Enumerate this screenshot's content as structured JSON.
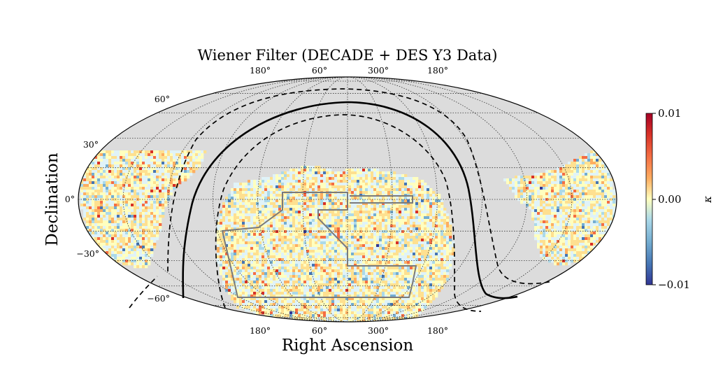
{
  "chart_data": {
    "type": "heatmap",
    "projection": "mollweide",
    "title": "Wiener Filter (DECADE + DES Y3 Data)",
    "xlabel": "Right Ascension",
    "ylabel": "Declination",
    "ra_tick_labels_top": [
      "180°",
      "60°",
      "300°",
      "180°"
    ],
    "ra_tick_labels_bottom": [
      "180°",
      "60°",
      "300°",
      "180°"
    ],
    "dec_tick_labels": [
      "60°",
      "30°",
      "0°",
      "−30°",
      "−60°"
    ],
    "dec_ticks": [
      60,
      30,
      0,
      -30,
      -60
    ],
    "colorbar": {
      "label": "κ",
      "range": [
        -0.01,
        0.01
      ],
      "tick_labels": [
        "0.01",
        "0.00",
        "−0.01"
      ],
      "tick_values": [
        0.01,
        0.0,
        -0.01
      ],
      "colormap": "RdYlBu_r"
    },
    "grid": true,
    "overlay_lines": [
      "galactic plane (solid)",
      "galactic latitude boundaries (dashed)",
      "DES Y3 footprint outline (grey)"
    ]
  },
  "colors": {
    "background_sky": "#dcdcdc",
    "footprint_outline": "#7a7a7a",
    "cmap_low": "#313695",
    "cmap_mid": "#ffffbf",
    "cmap_high": "#a50026"
  }
}
